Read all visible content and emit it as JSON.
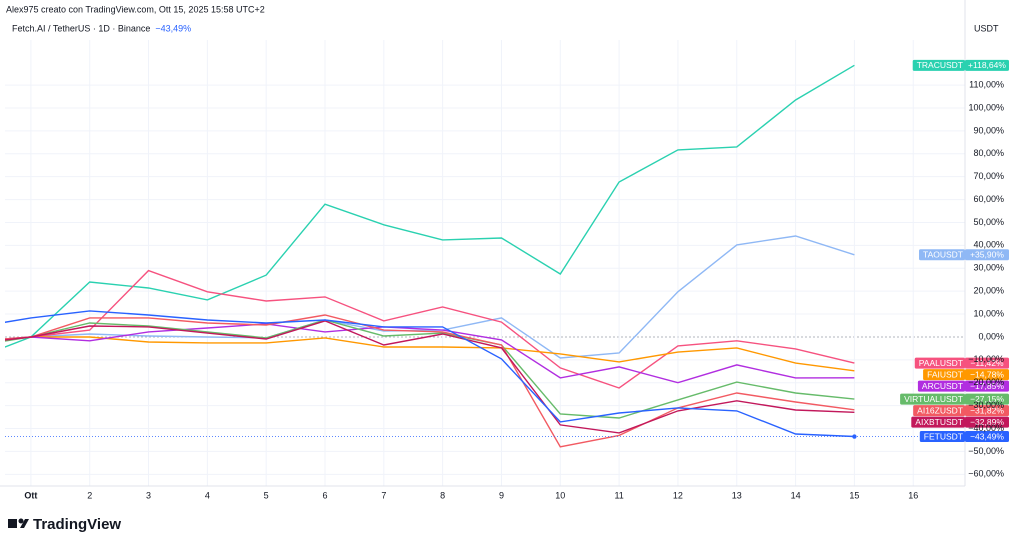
{
  "header": {
    "credit": "Alex975 creato con TradingView.com, Ott 15, 2025 15:58 UTC+2",
    "symbol": "Fetch.AI / TetherUS · 1D · Binance",
    "logo": "TradingView"
  },
  "chart_data": {
    "type": "line",
    "y_axis_unit": "USDT",
    "x": [
      0,
      1,
      2,
      3,
      4,
      5,
      6,
      7,
      8,
      9,
      10,
      11,
      12,
      13,
      14,
      15
    ],
    "xlim": [
      0.56,
      16.88
    ],
    "xticks": [
      {
        "value": 1,
        "label": "Ott"
      },
      2,
      3,
      4,
      5,
      6,
      7,
      8,
      9,
      10,
      11,
      12,
      13,
      14,
      15,
      16
    ],
    "ylim": [
      -65.1,
      129.7
    ],
    "yticks": [
      {
        "value": -60,
        "label": "−60,00%"
      },
      {
        "value": -50,
        "label": "−50,00%"
      },
      {
        "value": -40,
        "label": "−40,00%"
      },
      {
        "value": -30,
        "label": "−30,00%"
      },
      {
        "value": -20,
        "label": "−20,00%"
      },
      {
        "value": -10,
        "label": "−10,00%"
      },
      {
        "value": 0,
        "label": "0,00%"
      },
      {
        "value": 10,
        "label": "10,00%"
      },
      {
        "value": 20,
        "label": "20,00%"
      },
      {
        "value": 30,
        "label": "30,00%"
      },
      {
        "value": 40,
        "label": "40,00%"
      },
      {
        "value": 50,
        "label": "50,00%"
      },
      {
        "value": 60,
        "label": "60,00%"
      },
      {
        "value": 70,
        "label": "70,00%"
      },
      {
        "value": 80,
        "label": "80,00%"
      },
      {
        "value": 90,
        "label": "90,00%"
      },
      {
        "value": 100,
        "label": "100,00%"
      },
      {
        "value": 110,
        "label": "110,00%"
      }
    ],
    "grid": true,
    "series": [
      {
        "name": "TRACUSDT",
        "color": "#2ad1b0",
        "values": [
          -10,
          0,
          24,
          21.4,
          16.2,
          27,
          58,
          49,
          42.4,
          43.2,
          27.5,
          67.7,
          81.7,
          83,
          103.5,
          118.64
        ],
        "value_labels": [
          null,
          null,
          null,
          null,
          null,
          null,
          null,
          null,
          null,
          null,
          null,
          null,
          null,
          null,
          null,
          "+118,64%"
        ]
      },
      {
        "name": "TAOUSDT",
        "color": "#8fb8f5",
        "values": [
          -3,
          0,
          1.3,
          0.4,
          0,
          -0.4,
          7.4,
          2.6,
          3,
          8.3,
          -9.2,
          -7,
          19.7,
          40.2,
          44.1,
          35.9
        ],
        "value_labels": [
          null,
          null,
          null,
          null,
          null,
          null,
          null,
          null,
          null,
          null,
          null,
          null,
          null,
          null,
          null,
          "+35,90%"
        ]
      },
      {
        "name": "PAALUSDT",
        "color": "#f6527f",
        "values": [
          -3,
          0,
          3,
          29,
          19.7,
          15.7,
          17.5,
          7,
          13.1,
          6.5,
          -13.5,
          -22.3,
          -3.9,
          -1.7,
          -5.2,
          -11.42
        ],
        "value_labels": [
          null,
          null,
          null,
          null,
          null,
          null,
          null,
          null,
          null,
          null,
          null,
          null,
          null,
          null,
          null,
          "−11,42%"
        ]
      },
      {
        "name": "FAIUSDT",
        "color": "#ff9800",
        "values": [
          -2,
          0,
          0,
          -2.2,
          -2.6,
          -2.6,
          -0.4,
          -4.4,
          -4.4,
          -4.8,
          -7.4,
          -10.9,
          -6.6,
          -4.8,
          -11.4,
          -14.78
        ],
        "value_labels": [
          null,
          null,
          null,
          null,
          null,
          null,
          null,
          null,
          null,
          null,
          null,
          null,
          null,
          null,
          null,
          "−14,78%"
        ]
      },
      {
        "name": "ARCUSDT",
        "color": "#b12ee0",
        "values": [
          -2,
          0,
          -1.7,
          2.2,
          3.9,
          5.7,
          2.2,
          4.4,
          3,
          -1.3,
          -17.9,
          -13.1,
          -20,
          -12.2,
          -17.9,
          -17.85
        ],
        "value_labels": [
          null,
          null,
          null,
          null,
          null,
          null,
          null,
          null,
          null,
          null,
          null,
          null,
          null,
          null,
          null,
          "−17,85%"
        ]
      },
      {
        "name": "VIRTUALUSDT",
        "color": "#66bb6a",
        "values": [
          -4,
          0,
          6.1,
          4.8,
          2.2,
          -0.4,
          7.4,
          0.4,
          1.7,
          -3.5,
          -33.6,
          -35.4,
          -27.5,
          -19.7,
          -24.5,
          -27.15
        ],
        "value_labels": [
          null,
          null,
          null,
          null,
          null,
          null,
          null,
          null,
          null,
          null,
          null,
          null,
          null,
          null,
          null,
          "−27,15%"
        ]
      },
      {
        "name": "AI16ZUSDT",
        "color": "#f25a62",
        "values": [
          -2,
          0,
          8.3,
          8.3,
          6.1,
          5.2,
          9.6,
          3,
          2.2,
          -3.5,
          -48,
          -43,
          -31,
          -24.5,
          -28.4,
          -31.82
        ],
        "value_labels": [
          null,
          null,
          null,
          null,
          null,
          null,
          null,
          null,
          null,
          null,
          null,
          null,
          null,
          null,
          null,
          "−31,82%"
        ]
      },
      {
        "name": "AIXBTUSDT",
        "color": "#c2185b",
        "values": [
          -3,
          0,
          4.8,
          4.4,
          1.7,
          -0.9,
          7,
          -3.5,
          1.3,
          -4.8,
          -38.4,
          -41.9,
          -32.3,
          -27.9,
          -31.9,
          -32.89
        ],
        "value_labels": [
          null,
          null,
          null,
          null,
          null,
          null,
          null,
          null,
          null,
          null,
          null,
          null,
          null,
          null,
          null,
          "−32,89%"
        ]
      },
      {
        "name": "FETUSDT",
        "color": "#2962ff",
        "values": [
          4,
          8.3,
          11.4,
          9.6,
          7.4,
          6.1,
          7.4,
          4.4,
          4.4,
          -9.6,
          -37.1,
          -33.2,
          -31,
          -32.3,
          -42.4,
          -43.49
        ],
        "value_labels": [
          null,
          null,
          null,
          null,
          null,
          null,
          null,
          null,
          null,
          null,
          null,
          null,
          null,
          null,
          null,
          "−43,49%"
        ]
      }
    ]
  }
}
